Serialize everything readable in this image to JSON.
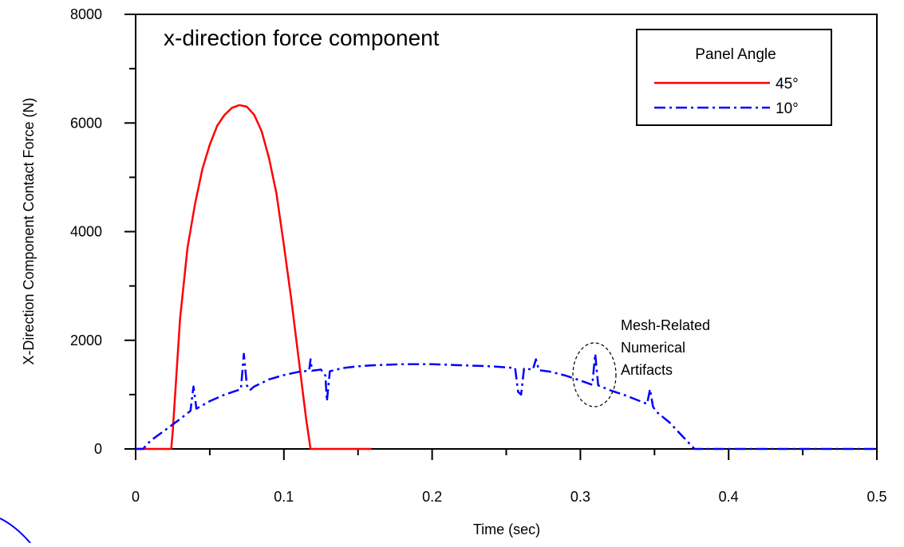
{
  "chart_data": {
    "type": "line",
    "title": "x-direction force component",
    "xlabel": "Time (sec)",
    "ylabel": "X-Direction Component Contact Force (N)",
    "xlim": [
      0,
      0.5
    ],
    "ylim": [
      0,
      8000
    ],
    "x_ticks": [
      0,
      0.1,
      0.2,
      0.3,
      0.4,
      0.5
    ],
    "x_tick_labels": [
      "0",
      "0.1",
      "0.2",
      "0.3",
      "0.4",
      "0.5"
    ],
    "y_ticks": [
      0,
      2000,
      4000,
      6000,
      8000
    ],
    "y_tick_labels": [
      "0",
      "2000",
      "4000",
      "6000",
      "8000"
    ],
    "grid": false,
    "legend": {
      "title": "Panel Angle",
      "placement": "top-right"
    },
    "annotation": {
      "lines": [
        "Mesh-Related",
        "Numerical",
        "Artifacts"
      ],
      "target": {
        "x": 0.311,
        "y": 1400
      }
    },
    "series": [
      {
        "name": "45°",
        "color": "#ff0000",
        "style": "solid",
        "x": [
          0,
          0.024,
          0.025,
          0.03,
          0.035,
          0.04,
          0.045,
          0.05,
          0.055,
          0.06,
          0.065,
          0.07,
          0.075,
          0.08,
          0.085,
          0.09,
          0.095,
          0.1,
          0.105,
          0.11,
          0.115,
          0.118,
          0.12,
          0.159
        ],
        "y": [
          0,
          0,
          300,
          2400,
          3700,
          4500,
          5150,
          5600,
          5950,
          6150,
          6280,
          6330,
          6300,
          6150,
          5850,
          5350,
          4700,
          3750,
          2750,
          1650,
          550,
          0,
          0,
          0
        ]
      },
      {
        "name": "10°",
        "color": "#0000ff",
        "style": "dash-dot",
        "x": [
          0,
          0.005,
          0.01,
          0.02,
          0.03,
          0.037,
          0.039,
          0.041,
          0.05,
          0.06,
          0.071,
          0.073,
          0.075,
          0.077,
          0.08,
          0.09,
          0.1,
          0.11,
          0.117,
          0.118,
          0.119,
          0.125,
          0.128,
          0.129,
          0.131,
          0.14,
          0.15,
          0.16,
          0.18,
          0.2,
          0.22,
          0.24,
          0.256,
          0.258,
          0.26,
          0.262,
          0.268,
          0.27,
          0.272,
          0.28,
          0.29,
          0.3,
          0.308,
          0.31,
          0.312,
          0.314,
          0.32,
          0.33,
          0.345,
          0.347,
          0.349,
          0.351,
          0.36,
          0.37,
          0.377,
          0.38,
          0.39,
          0.4,
          0.45,
          0.5
        ],
        "y": [
          0,
          0,
          150,
          350,
          550,
          700,
          1150,
          740,
          880,
          1000,
          1100,
          1750,
          1170,
          1080,
          1150,
          1280,
          1360,
          1420,
          1440,
          1650,
          1440,
          1460,
          1350,
          880,
          1430,
          1490,
          1520,
          1540,
          1560,
          1560,
          1540,
          1520,
          1490,
          1050,
          1000,
          1480,
          1460,
          1650,
          1450,
          1420,
          1350,
          1260,
          1180,
          1750,
          1170,
          1150,
          1080,
          990,
          830,
          1100,
          780,
          690,
          490,
          200,
          0,
          0,
          0,
          0,
          0,
          0
        ]
      }
    ]
  }
}
